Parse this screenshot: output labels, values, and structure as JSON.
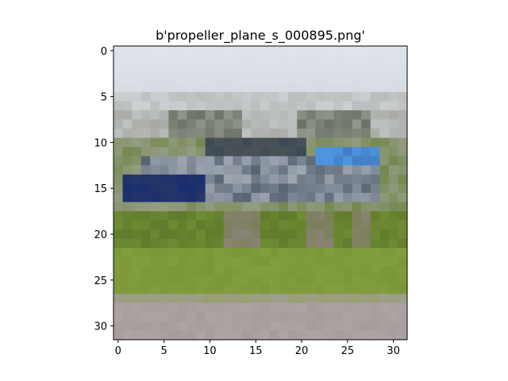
{
  "chart_data": {
    "type": "heatmap",
    "title": "b'propeller_plane_s_000895.png'",
    "xlabel": "",
    "ylabel": "",
    "xlim": [
      -0.5,
      31.5
    ],
    "ylim": [
      31.5,
      -0.5
    ],
    "grid": false,
    "xticks": [
      0,
      5,
      10,
      15,
      20,
      25,
      30
    ],
    "yticks": [
      0,
      5,
      10,
      15,
      20,
      25,
      30
    ],
    "image_size": [
      32,
      32
    ],
    "palette": {
      "sky": "#dfe4ea",
      "sky_low": "#d4dadf",
      "hangar": "#a8aaa4",
      "hangar_dark": "#5d6455",
      "fuselage": "#9ea7b2",
      "fuselage_dark": "#3a4656",
      "wing_blue": "#4f96e0",
      "navy": "#1a2e70",
      "gear": "#8c8478",
      "grass_dark": "#5f7a2c",
      "grass": "#7b9838",
      "grass_light": "#8aa24a",
      "road": "#a59c9c",
      "road_light": "#b4aaa8"
    }
  }
}
